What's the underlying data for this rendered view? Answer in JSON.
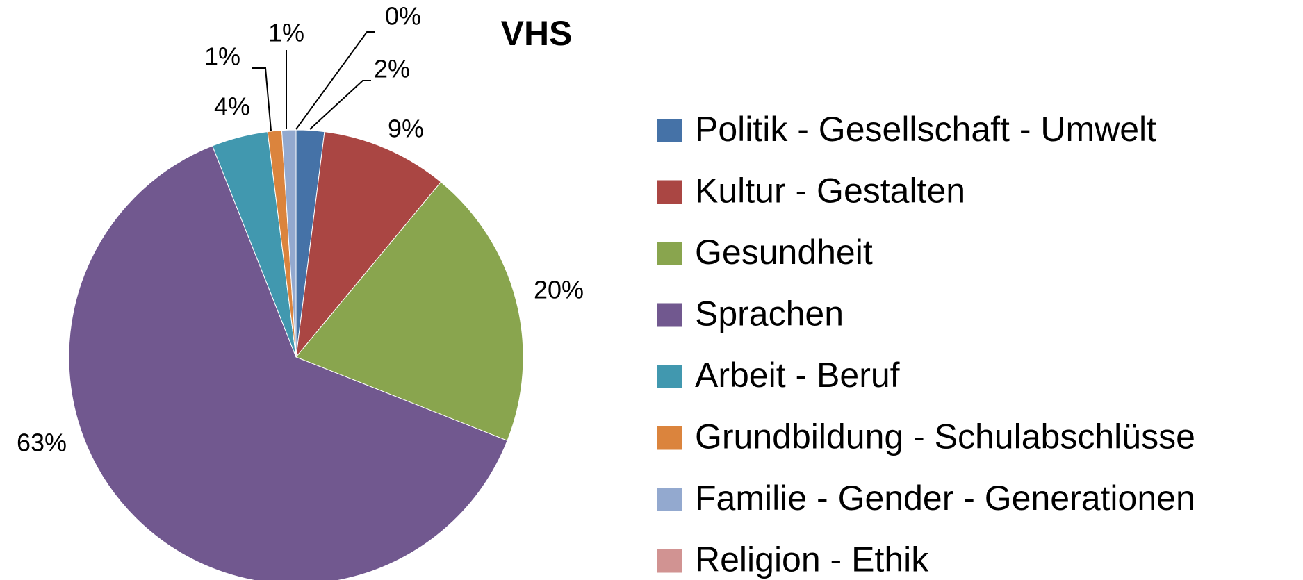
{
  "chart_data": {
    "type": "pie",
    "title": "VHS",
    "categories": [
      "Politik - Gesellschaft - Umwelt",
      "Kultur - Gestalten",
      "Gesundheit",
      "Sprachen",
      "Arbeit - Beruf",
      "Grundbildung - Schulabschlüsse",
      "Familie - Gender - Generationen",
      "Religion - Ethik"
    ],
    "values": [
      2,
      9,
      20,
      63,
      4,
      1,
      1,
      0
    ],
    "value_labels": [
      "2%",
      "9%",
      "20%",
      "63%",
      "4%",
      "1%",
      "1%",
      "0%"
    ],
    "colors": [
      "#4572a7",
      "#aa4643",
      "#89a54e",
      "#71588f",
      "#4198af",
      "#db843d",
      "#93a9cf",
      "#d19392"
    ],
    "legend": "right"
  }
}
